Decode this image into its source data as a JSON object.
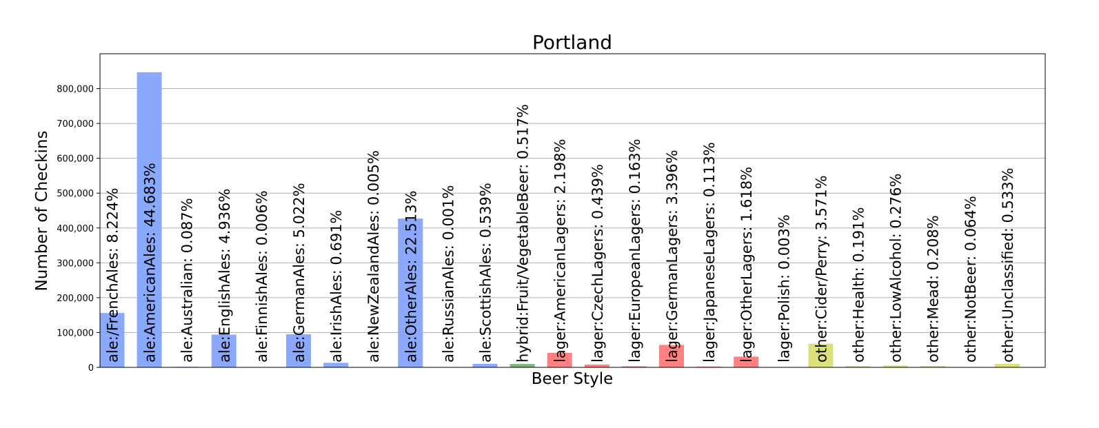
{
  "chart_data": {
    "type": "bar",
    "title": "Portland",
    "xlabel": "Beer Style",
    "ylabel": "Number of Checkins",
    "ylim": [
      0,
      900000
    ],
    "yticks": [
      0,
      100000,
      200000,
      300000,
      400000,
      500000,
      600000,
      700000,
      800000
    ],
    "ytick_labels": [
      "0",
      "100,000",
      "200,000",
      "300,000",
      "400,000",
      "500,000",
      "600,000",
      "700,000",
      "800,000"
    ],
    "grid": "horizontal",
    "categories": [
      "ale:/FrenchAles",
      "ale:AmericanAles",
      "ale:Australian",
      "ale:EnglishAles",
      "ale:FinnishAles",
      "ale:GermanAles",
      "ale:IrishAles",
      "ale:NewZealandAles",
      "ale:OtherAles",
      "ale:RussianAles",
      "ale:ScottishAles",
      "hybrid:Fruit/VegetableBeer",
      "lager:AmericanLagers",
      "lager:CzechLagers",
      "lager:EuropeanLagers",
      "lager:GermanLagers",
      "lager:JapaneseLagers",
      "lager:OtherLagers",
      "lager:Polish",
      "other:Cider/Perry",
      "other:Health",
      "other:LowAlcohol",
      "other:Mead",
      "other:NotBeer",
      "other:Unclassified"
    ],
    "values": [
      156000,
      847000,
      1650,
      94000,
      114,
      95000,
      13100,
      95,
      427000,
      19,
      10200,
      9800,
      41700,
      8300,
      3100,
      64400,
      2140,
      30700,
      57,
      67800,
      3620,
      5240,
      3950,
      1210,
      10100
    ],
    "bar_labels": [
      "ale:/FrenchAles: 8.224%",
      "ale:AmericanAles: 44.683%",
      "ale:Australian: 0.087%",
      "ale:EnglishAles: 4.936%",
      "ale:FinnishAles: 0.006%",
      "ale:GermanAles: 5.022%",
      "ale:IrishAles: 0.691%",
      "ale:NewZealandAles: 0.005%",
      "ale:OtherAles: 22.513%",
      "ale:RussianAles: 0.001%",
      "ale:ScottishAles: 0.539%",
      "hybrid:Fruit/VegetableBeer: 0.517%",
      "lager:AmericanLagers: 2.198%",
      "lager:CzechLagers: 0.439%",
      "lager:EuropeanLagers: 0.163%",
      "lager:GermanLagers: 3.396%",
      "lager:JapaneseLagers: 0.113%",
      "lager:OtherLagers: 1.618%",
      "lager:Polish: 0.003%",
      "other:Cider/Perry: 3.571%",
      "other:Health: 0.191%",
      "other:LowAlcohol: 0.276%",
      "other:Mead: 0.208%",
      "other:NotBeer: 0.064%",
      "other:Unclassified: 0.533%"
    ],
    "colors": {
      "ale": "#8aa8fc",
      "hybrid": "#7fb77e",
      "lager": "#ff8080",
      "other": "#dce07a"
    }
  }
}
